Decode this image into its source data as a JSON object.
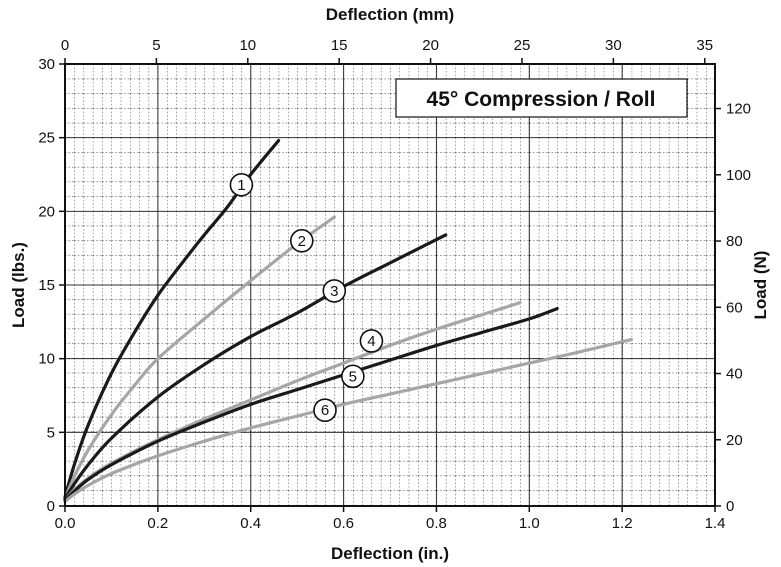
{
  "chart_data": {
    "type": "line",
    "title": "45° Compression / Roll",
    "xlabel": "Deflection (in.)",
    "x2label": "Deflection (mm)",
    "ylabel": "Load (lbs.)",
    "y2label": "Load (N)",
    "xlim": [
      0,
      1.4
    ],
    "ylim": [
      0,
      30
    ],
    "x2lim": [
      0,
      35.56
    ],
    "y2lim": [
      0,
      133.45
    ],
    "xticks": [
      "0.0",
      "0.2",
      "0.4",
      "0.6",
      "0.8",
      "1.0",
      "1.2",
      "1.4"
    ],
    "x2ticks": [
      "0",
      "5",
      "10",
      "15",
      "20",
      "25",
      "30",
      "35"
    ],
    "yticks": [
      "0",
      "5",
      "10",
      "15",
      "20",
      "25",
      "30"
    ],
    "y2ticks": [
      "0",
      "20",
      "40",
      "60",
      "80",
      "100",
      "120"
    ],
    "grid": true,
    "series": [
      {
        "label": "1",
        "color": "#1a1a1a",
        "x": [
          0.0,
          0.02,
          0.05,
          0.1,
          0.15,
          0.2,
          0.25,
          0.3,
          0.35,
          0.4,
          0.46
        ],
        "y": [
          0.6,
          2.8,
          5.5,
          9.0,
          11.8,
          14.3,
          16.4,
          18.4,
          20.3,
          22.5,
          24.8
        ],
        "marker_x": 0.38,
        "marker_y": 21.8
      },
      {
        "label": "2",
        "color": "#a6a6a6",
        "x": [
          0.0,
          0.02,
          0.05,
          0.1,
          0.15,
          0.2,
          0.3,
          0.4,
          0.5,
          0.58
        ],
        "y": [
          0.5,
          2.0,
          3.8,
          6.2,
          8.2,
          10.0,
          12.7,
          15.3,
          17.8,
          19.6
        ],
        "marker_x": 0.51,
        "marker_y": 18.0
      },
      {
        "label": "3",
        "color": "#1a1a1a",
        "x": [
          0.0,
          0.02,
          0.05,
          0.1,
          0.2,
          0.3,
          0.4,
          0.5,
          0.6,
          0.7,
          0.82
        ],
        "y": [
          0.5,
          1.5,
          2.8,
          4.6,
          7.4,
          9.6,
          11.5,
          13.1,
          14.9,
          16.5,
          18.4
        ],
        "marker_x": 0.58,
        "marker_y": 14.6
      },
      {
        "label": "4",
        "color": "#a6a6a6",
        "x": [
          0.0,
          0.02,
          0.05,
          0.1,
          0.2,
          0.3,
          0.4,
          0.5,
          0.6,
          0.7,
          0.8,
          0.9,
          0.98
        ],
        "y": [
          0.4,
          1.1,
          1.9,
          2.9,
          4.5,
          5.9,
          7.2,
          8.5,
          9.7,
          10.9,
          12.0,
          13.0,
          13.8
        ],
        "marker_x": 0.66,
        "marker_y": 11.2
      },
      {
        "label": "5",
        "color": "#1a1a1a",
        "x": [
          0.0,
          0.02,
          0.05,
          0.1,
          0.2,
          0.3,
          0.4,
          0.5,
          0.6,
          0.7,
          0.8,
          0.9,
          1.0,
          1.06
        ],
        "y": [
          0.4,
          1.0,
          1.8,
          2.8,
          4.4,
          5.7,
          6.9,
          7.9,
          8.9,
          9.9,
          10.9,
          11.8,
          12.7,
          13.4
        ],
        "marker_x": 0.62,
        "marker_y": 8.8
      },
      {
        "label": "6",
        "color": "#a6a6a6",
        "x": [
          0.0,
          0.02,
          0.05,
          0.1,
          0.2,
          0.3,
          0.4,
          0.5,
          0.6,
          0.7,
          0.8,
          0.9,
          1.0,
          1.1,
          1.22
        ],
        "y": [
          0.3,
          0.8,
          1.4,
          2.2,
          3.4,
          4.4,
          5.3,
          6.1,
          6.9,
          7.6,
          8.3,
          9.0,
          9.7,
          10.4,
          11.3
        ],
        "marker_x": 0.56,
        "marker_y": 6.5
      }
    ]
  }
}
